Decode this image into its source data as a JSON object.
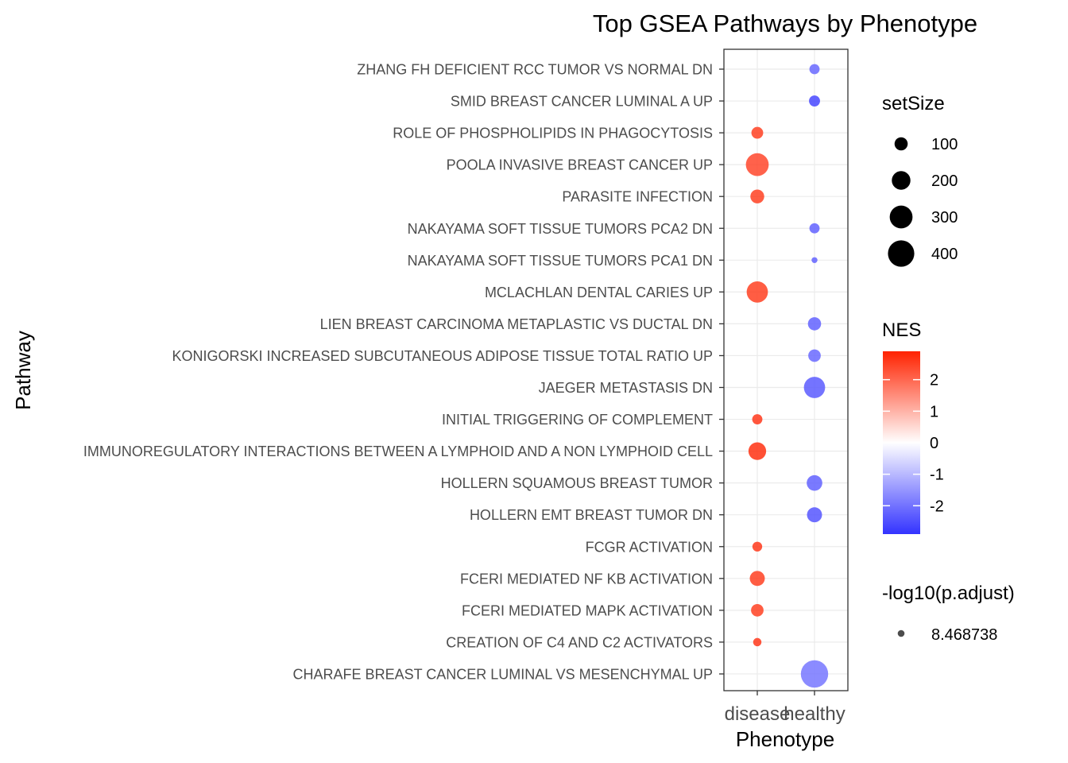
{
  "chart_data": {
    "type": "scatter",
    "title": "Top GSEA Pathways by Phenotype",
    "xlabel": "Phenotype",
    "ylabel": "Pathway",
    "x_categories": [
      "disease",
      "healthy"
    ],
    "y_categories": [
      "ZHANG FH DEFICIENT RCC TUMOR VS NORMAL DN",
      "SMID BREAST CANCER LUMINAL A UP",
      "ROLE OF PHOSPHOLIPIDS IN PHAGOCYTOSIS",
      "POOLA INVASIVE BREAST CANCER UP",
      "PARASITE INFECTION",
      "NAKAYAMA SOFT TISSUE TUMORS PCA2 DN",
      "NAKAYAMA SOFT TISSUE TUMORS PCA1 DN",
      "MCLACHLAN DENTAL CARIES UP",
      "LIEN BREAST CARCINOMA METAPLASTIC VS DUCTAL DN",
      "KONIGORSKI INCREASED SUBCUTANEOUS ADIPOSE TISSUE TOTAL RATIO UP",
      "JAEGER METASTASIS DN",
      "INITIAL TRIGGERING OF COMPLEMENT",
      "IMMUNOREGULATORY INTERACTIONS BETWEEN A LYMPHOID AND A NON LYMPHOID CELL",
      "HOLLERN SQUAMOUS BREAST TUMOR",
      "HOLLERN EMT BREAST TUMOR DN",
      "FCGR ACTIVATION",
      "FCERI MEDIATED NF KB ACTIVATION",
      "FCERI MEDIATED MAPK ACTIVATION",
      "CREATION OF C4 AND C2 ACTIVATORS",
      "CHARAFE BREAST CANCER LUMINAL VS MESENCHYMAL UP"
    ],
    "points": [
      {
        "pathway": "ZHANG FH DEFICIENT RCC TUMOR VS NORMAL DN",
        "phenotype": "healthy",
        "setSize": 60,
        "NES": -2.2
      },
      {
        "pathway": "SMID BREAST CANCER LUMINAL A UP",
        "phenotype": "healthy",
        "setSize": 70,
        "NES": -2.7
      },
      {
        "pathway": "ROLE OF PHOSPHOLIPIDS IN PHAGOCYTOSIS",
        "phenotype": "disease",
        "setSize": 80,
        "NES": 2.6
      },
      {
        "pathway": "POOLA INVASIVE BREAST CANCER UP",
        "phenotype": "disease",
        "setSize": 300,
        "NES": 2.5
      },
      {
        "pathway": "PARASITE INFECTION",
        "phenotype": "disease",
        "setSize": 110,
        "NES": 2.6
      },
      {
        "pathway": "NAKAYAMA SOFT TISSUE TUMORS PCA2 DN",
        "phenotype": "healthy",
        "setSize": 60,
        "NES": -2.3
      },
      {
        "pathway": "NAKAYAMA SOFT TISSUE TUMORS PCA1 DN",
        "phenotype": "healthy",
        "setSize": 20,
        "NES": -2.3
      },
      {
        "pathway": "MCLACHLAN DENTAL CARIES UP",
        "phenotype": "disease",
        "setSize": 260,
        "NES": 2.6
      },
      {
        "pathway": "LIEN BREAST CARCINOMA METAPLASTIC VS DUCTAL DN",
        "phenotype": "healthy",
        "setSize": 100,
        "NES": -2.3
      },
      {
        "pathway": "KONIGORSKI INCREASED SUBCUTANEOUS ADIPOSE TISSUE TOTAL RATIO UP",
        "phenotype": "healthy",
        "setSize": 90,
        "NES": -2.2
      },
      {
        "pathway": "JAEGER METASTASIS DN",
        "phenotype": "healthy",
        "setSize": 260,
        "NES": -2.4
      },
      {
        "pathway": "INITIAL TRIGGERING OF COMPLEMENT",
        "phenotype": "disease",
        "setSize": 60,
        "NES": 2.7
      },
      {
        "pathway": "IMMUNOREGULATORY INTERACTIONS BETWEEN A LYMPHOID AND A NON LYMPHOID CELL",
        "phenotype": "disease",
        "setSize": 180,
        "NES": 2.8
      },
      {
        "pathway": "HOLLERN SQUAMOUS BREAST TUMOR",
        "phenotype": "healthy",
        "setSize": 140,
        "NES": -2.3
      },
      {
        "pathway": "HOLLERN EMT BREAST TUMOR DN",
        "phenotype": "healthy",
        "setSize": 130,
        "NES": -2.5
      },
      {
        "pathway": "FCGR ACTIVATION",
        "phenotype": "disease",
        "setSize": 55,
        "NES": 2.7
      },
      {
        "pathway": "FCERI MEDIATED NF KB ACTIVATION",
        "phenotype": "disease",
        "setSize": 130,
        "NES": 2.6
      },
      {
        "pathway": "FCERI MEDIATED MAPK ACTIVATION",
        "phenotype": "disease",
        "setSize": 90,
        "NES": 2.6
      },
      {
        "pathway": "CREATION OF C4 AND C2 ACTIVATORS",
        "phenotype": "disease",
        "setSize": 40,
        "NES": 2.7
      },
      {
        "pathway": "CHARAFE BREAST CANCER LUMINAL VS MESENCHYMAL UP",
        "phenotype": "healthy",
        "setSize": 430,
        "NES": -2.0
      }
    ],
    "legend_size": {
      "title": "setSize",
      "values": [
        100,
        200,
        300,
        400
      ]
    },
    "legend_color": {
      "title": "NES",
      "range": [
        -2.9,
        2.9
      ],
      "ticks": [
        2,
        1,
        0,
        -1,
        -2
      ],
      "low_color": "#3333ff",
      "mid_color": "#ffffff",
      "high_color": "#ff2200"
    },
    "legend_alpha": {
      "title": "-log10(p.adjust)",
      "values": [
        "8.468738"
      ]
    },
    "grid": true,
    "legend_position": "right"
  }
}
